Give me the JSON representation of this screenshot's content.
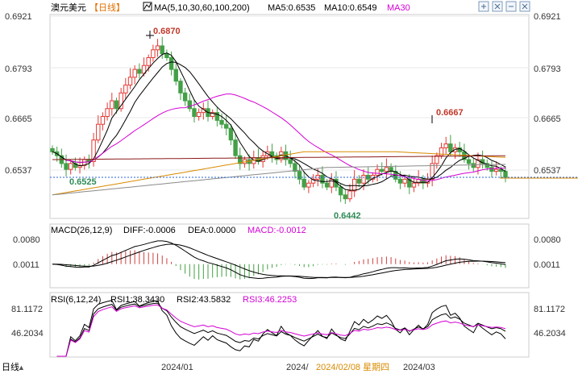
{
  "header": {
    "symbol": "澳元美元",
    "period": "【日线】",
    "ma_label": "MA(5,10,30,60,100,200)",
    "ma5": "MA5:0.6535",
    "ma10": "MA10:0.6549",
    "ma30": "MA30",
    "icons": [
      "expand-icon",
      "zoom-in-icon",
      "zoom-out-icon",
      "close-icon"
    ]
  },
  "colors": {
    "up": "#e53935",
    "down": "#43a047",
    "ma5": "#000000",
    "ma10": "#000000",
    "ma30": "#d400d4",
    "ma60": "#d98a00",
    "ma100": "#8b1a1a",
    "ma200": "#8a8a8a",
    "last_line": "#2a64d6",
    "macd_pos": "#d04040",
    "macd_neg": "#40a040",
    "diff": "#000000",
    "dea": "#000000",
    "rsi1": "#000000",
    "rsi2": "#000000",
    "rsi3": "#d400d4"
  },
  "price_axis": {
    "ticks": [
      "0.6921",
      "0.6793",
      "0.6665",
      "0.6537"
    ],
    "current": "0.6537"
  },
  "annotations": {
    "high": "0.6870",
    "high2": "0.6667",
    "low_left": "0.6525",
    "low": "0.6442"
  },
  "macd": {
    "label": "MACD(26,12,9)",
    "diff": "DIFF:-0.0006",
    "dea": "DEA:0.0000",
    "macd": "MACD:-0.0012",
    "ticks": [
      "0.0080",
      "0.0011"
    ]
  },
  "rsi": {
    "label": "RSI(6,12,24)",
    "rsi1": "RSI1:38.3430",
    "rsi2": "RSI2:43.5832",
    "rsi3": "RSI3:46.2253",
    "ticks": [
      "81.1172",
      "46.2034"
    ]
  },
  "bottom": {
    "period": "日线",
    "dates": [
      "2024/01",
      "2024/",
      "2024/02/08 星期四",
      "2024/03"
    ]
  },
  "chart_data": {
    "type": "candlestick",
    "ylim": [
      0.642,
      0.694
    ],
    "closes": [
      0.659,
      0.658,
      0.656,
      0.6545,
      0.656,
      0.655,
      0.6555,
      0.657,
      0.6565,
      0.662,
      0.666,
      0.668,
      0.67,
      0.672,
      0.67,
      0.674,
      0.676,
      0.678,
      0.68,
      0.679,
      0.681,
      0.683,
      0.685,
      0.686,
      0.684,
      0.683,
      0.68,
      0.677,
      0.674,
      0.672,
      0.67,
      0.668,
      0.669,
      0.67,
      0.668,
      0.669,
      0.667,
      0.666,
      0.665,
      0.662,
      0.658,
      0.656,
      0.657,
      0.656,
      0.6575,
      0.6565,
      0.658,
      0.659,
      0.658,
      0.657,
      0.659,
      0.657,
      0.656,
      0.654,
      0.652,
      0.65,
      0.651,
      0.652,
      0.653,
      0.651,
      0.65,
      0.652,
      0.65,
      0.648,
      0.647,
      0.649,
      0.652,
      0.651,
      0.653,
      0.652,
      0.653,
      0.6545,
      0.654,
      0.655,
      0.654,
      0.652,
      0.651,
      0.652,
      0.65,
      0.651,
      0.652,
      0.651,
      0.652,
      0.656,
      0.658,
      0.66,
      0.661,
      0.659,
      0.66,
      0.659,
      0.657,
      0.656,
      0.655,
      0.657,
      0.656,
      0.655,
      0.654,
      0.6545,
      0.654,
      0.6525
    ],
    "series": [
      {
        "name": "MA5"
      },
      {
        "name": "MA10"
      },
      {
        "name": "MA30"
      }
    ]
  }
}
